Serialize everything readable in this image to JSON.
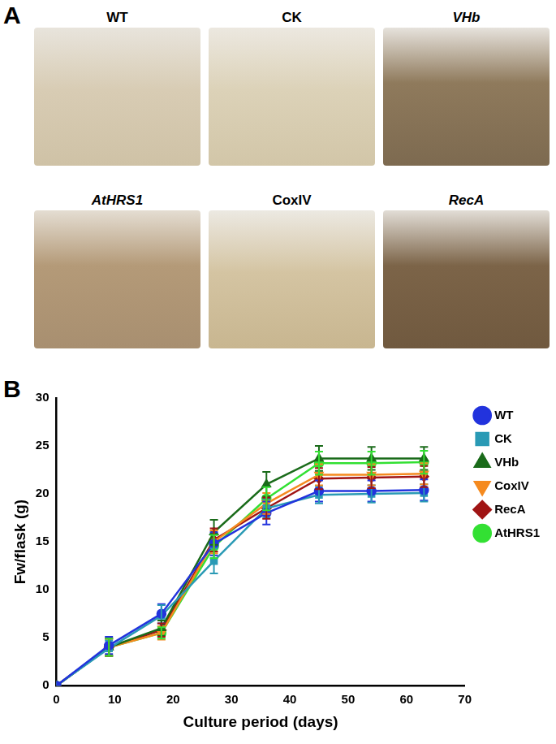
{
  "panel_a": {
    "label": "A",
    "photos": [
      "WT",
      "CK",
      "VHb",
      "AtHRS1",
      "CoxIV",
      "RecA"
    ]
  },
  "panel_b_label": "B",
  "chart_data": {
    "type": "line",
    "x_label": "Culture period (days)",
    "y_label": "Fw/flask (g)",
    "x": [
      0,
      9,
      18,
      27,
      36,
      45,
      54,
      63
    ],
    "xlim": [
      0,
      70
    ],
    "xticks": [
      0,
      10,
      20,
      30,
      40,
      50,
      60,
      70
    ],
    "ylim": [
      0,
      30
    ],
    "yticks": [
      0,
      5,
      10,
      15,
      20,
      25,
      30
    ],
    "grid": false,
    "legend": "right",
    "series": [
      {
        "name": "WT",
        "color": "#2233dd",
        "marker": "circle",
        "values": [
          0,
          4.2,
          7.5,
          14.8,
          18.0,
          20.3,
          20.3,
          20.4
        ],
        "errors": [
          0,
          0.9,
          1.0,
          1.2,
          1.2,
          1.1,
          1.1,
          1.1
        ]
      },
      {
        "name": "CK",
        "color": "#2a9ab5",
        "marker": "square",
        "values": [
          0,
          3.9,
          7.3,
          13.0,
          18.5,
          19.9,
          20.0,
          20.1
        ],
        "errors": [
          0,
          0.8,
          1.1,
          1.3,
          1.0,
          0.9,
          0.9,
          0.9
        ]
      },
      {
        "name": "VHb",
        "color": "#1a6b1a",
        "marker": "triangle",
        "values": [
          0,
          4.0,
          6.0,
          16.0,
          21.0,
          23.7,
          23.7,
          23.7
        ],
        "errors": [
          0,
          0.9,
          0.8,
          1.3,
          1.3,
          1.3,
          1.2,
          1.2
        ]
      },
      {
        "name": "CoxIV",
        "color": "#f58a1f",
        "marker": "triangle-down",
        "values": [
          0,
          4.0,
          5.5,
          15.0,
          19.0,
          22.0,
          22.0,
          22.1
        ],
        "errors": [
          0,
          0.9,
          0.7,
          1.2,
          1.1,
          1.1,
          1.1,
          1.1
        ]
      },
      {
        "name": "RecA",
        "color": "#a01414",
        "marker": "diamond",
        "values": [
          0,
          4.0,
          5.8,
          15.2,
          18.5,
          21.6,
          21.7,
          21.8
        ],
        "errors": [
          0,
          0.9,
          0.7,
          1.2,
          1.1,
          1.1,
          1.1,
          1.1
        ]
      },
      {
        "name": "AtHRS1",
        "color": "#33e033",
        "marker": "circle",
        "values": [
          0,
          4.0,
          5.5,
          14.5,
          19.5,
          23.2,
          23.2,
          23.3
        ],
        "errors": [
          0,
          0.9,
          0.6,
          1.2,
          1.2,
          1.2,
          1.2,
          1.2
        ]
      }
    ]
  }
}
